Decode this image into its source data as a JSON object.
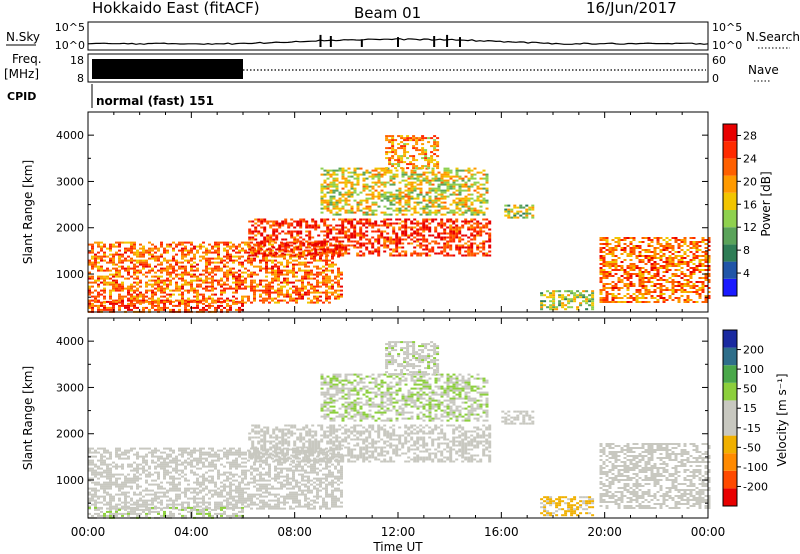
{
  "header": {
    "station": "Hokkaido East (fitACF)",
    "beam": "Beam 01",
    "date": "16/Jun/2017"
  },
  "noise_panel": {
    "left_label": "N.Sky",
    "right_label": "N.Search",
    "left_ticks": [
      "10^5",
      "10^0"
    ],
    "right_ticks": [
      "10^5",
      "10^0"
    ]
  },
  "freq_panel": {
    "left_label_1": "Freq.",
    "left_label_2": "[MHz]",
    "right_label": "Nave",
    "left_ticks": [
      "18",
      "8"
    ],
    "right_ticks": [
      "60",
      "0"
    ],
    "high_freq_until_hour": 6
  },
  "cpid_panel": {
    "label": "CPID",
    "value": "normal (fast) 151"
  },
  "x_axis": {
    "label": "Time UT",
    "ticks": [
      "00:00",
      "04:00",
      "08:00",
      "12:00",
      "16:00",
      "20:00",
      "00:00"
    ]
  },
  "colors": {
    "power_scale": [
      "#1a1aff",
      "#2055a8",
      "#2e7d56",
      "#5aa35a",
      "#8fd14f",
      "#f2c500",
      "#ff9a00",
      "#ff6000",
      "#ff2a00",
      "#e80000"
    ],
    "velocity_scale": [
      "#e80000",
      "#ff4a00",
      "#ff8a00",
      "#f0b000",
      "#c8c8c0",
      "#c8c8c0",
      "#8ccf3c",
      "#4aa84a",
      "#2e6e8a",
      "#1a2aa0"
    ]
  },
  "chart_data": [
    {
      "type": "heatmap",
      "title": "Power",
      "xlabel": "Time UT",
      "ylabel": "Slant Range [km]",
      "x_range_hours": [
        0,
        24
      ],
      "ylim": [
        180,
        4500
      ],
      "y_ticks": [
        1000,
        2000,
        3000,
        4000
      ],
      "colorbar": {
        "label": "Power [dB]",
        "ticks": [
          "4",
          "8",
          "12",
          "16",
          "20",
          "24",
          "28"
        ],
        "range": [
          0,
          30
        ]
      },
      "echo_regions": [
        {
          "t_start": 0.0,
          "t_end": 9.8,
          "r_low": 400,
          "r_high": 1700,
          "value": 22
        },
        {
          "t_start": 0.0,
          "t_end": 6.0,
          "r_low": 200,
          "r_high": 420,
          "value": 24
        },
        {
          "t_start": 6.2,
          "t_end": 15.6,
          "r_low": 1400,
          "r_high": 2200,
          "value": 26
        },
        {
          "t_start": 9.0,
          "t_end": 15.5,
          "r_low": 2300,
          "r_high": 3300,
          "value": 16
        },
        {
          "t_start": 11.5,
          "t_end": 13.5,
          "r_low": 3300,
          "r_high": 4000,
          "value": 20
        },
        {
          "t_start": 16.0,
          "t_end": 17.2,
          "r_low": 2200,
          "r_high": 2500,
          "value": 14
        },
        {
          "t_start": 17.5,
          "t_end": 19.5,
          "r_low": 250,
          "r_high": 650,
          "value": 14
        },
        {
          "t_start": 19.8,
          "t_end": 24.0,
          "r_low": 400,
          "r_high": 1800,
          "value": 22
        }
      ]
    },
    {
      "type": "heatmap",
      "title": "Velocity",
      "xlabel": "Time UT",
      "ylabel": "Slant Range [km]",
      "x_range_hours": [
        0,
        24
      ],
      "ylim": [
        180,
        4500
      ],
      "y_ticks": [
        1000,
        2000,
        3000,
        4000
      ],
      "colorbar": {
        "label": "Velocity [m s⁻¹]",
        "ticks": [
          "200",
          "100",
          "50",
          "15",
          "-15",
          "-50",
          "-100",
          "-200"
        ],
        "range": [
          -250,
          250
        ]
      },
      "echo_regions": [
        {
          "t_start": 0.0,
          "t_end": 9.8,
          "r_low": 400,
          "r_high": 1700,
          "value": 0
        },
        {
          "t_start": 0.0,
          "t_end": 6.0,
          "r_low": 200,
          "r_high": 420,
          "value": 30
        },
        {
          "t_start": 6.2,
          "t_end": 15.6,
          "r_low": 1400,
          "r_high": 2200,
          "value": -5
        },
        {
          "t_start": 9.0,
          "t_end": 15.5,
          "r_low": 2300,
          "r_high": 3300,
          "value": 40
        },
        {
          "t_start": 11.5,
          "t_end": 13.5,
          "r_low": 3300,
          "r_high": 4000,
          "value": 20
        },
        {
          "t_start": 16.0,
          "t_end": 17.2,
          "r_low": 2200,
          "r_high": 2500,
          "value": 0
        },
        {
          "t_start": 17.5,
          "t_end": 19.5,
          "r_low": 250,
          "r_high": 650,
          "value": -60
        },
        {
          "t_start": 19.8,
          "t_end": 24.0,
          "r_low": 400,
          "r_high": 1800,
          "value": 0
        }
      ]
    }
  ]
}
